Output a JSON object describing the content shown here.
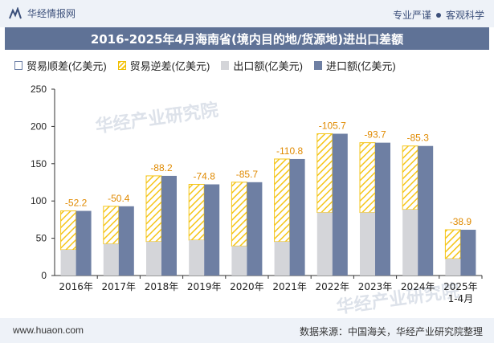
{
  "header": {
    "brand_name": "华经情报网",
    "tags": [
      "专业严谨",
      "客观科学"
    ]
  },
  "title": "2016-2025年4月海南省(境内目的地/货源地)进出口差额",
  "legend": [
    "贸易顺差(亿美元)",
    "贸易逆差(亿美元)",
    "出口额(亿美元)",
    "进口额(亿美元)"
  ],
  "footer": {
    "website": "www.huaon.com",
    "source": "数据来源：中国海关，华经产业研究院整理"
  },
  "watermark": "华经产业研究院",
  "colors": {
    "surplus_outline": "#6c7fa6",
    "deficit_hatch": "#f5c518",
    "export": "#d4d5d9",
    "import": "#6e7fa3",
    "label": "#e08a00",
    "title_bg": "#5f7296"
  },
  "chart_data": {
    "type": "bar",
    "categories": [
      "2016年",
      "2017年",
      "2018年",
      "2019年",
      "2020年",
      "2021年",
      "2022年",
      "2023年",
      "2024年",
      "2025年\n1-4月"
    ],
    "series": [
      {
        "name": "贸易逆差(亿美元)",
        "values": [
          -52.2,
          -50.4,
          -88.2,
          -74.8,
          -85.7,
          -110.8,
          -105.7,
          -93.7,
          -85.3,
          -38.9
        ]
      },
      {
        "name": "出口额(亿美元)",
        "values": [
          34.5,
          42.5,
          45.5,
          47.5,
          39.5,
          45.5,
          84.5,
          84.5,
          88.5,
          22.5
        ]
      },
      {
        "name": "进口额(亿美元)",
        "values": [
          86.7,
          92.9,
          133.7,
          122.3,
          125.2,
          156.3,
          190.2,
          178.2,
          173.8,
          61.4
        ]
      }
    ],
    "ylim": [
      0,
      250
    ],
    "yticks": [
      0,
      50,
      100,
      150,
      200,
      250
    ],
    "grid": false,
    "legend_position": "top"
  }
}
